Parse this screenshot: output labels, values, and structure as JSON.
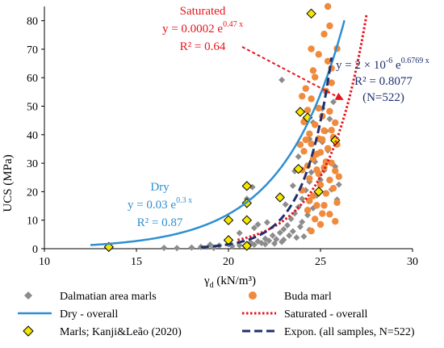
{
  "chart_data": {
    "type": "scatter",
    "xlabel": "γd (kN/m³)",
    "ylabel": "UCS (MPa)",
    "xlim": [
      10,
      30
    ],
    "ylim": [
      0,
      85
    ],
    "xticks": [
      10,
      15,
      20,
      25,
      30
    ],
    "yticks": [
      0,
      10,
      20,
      30,
      40,
      50,
      60,
      70,
      80
    ],
    "grid": false,
    "legend": "bottom",
    "series": [
      {
        "name": "Dalmatian area marls",
        "kind": "scatter",
        "marker": "diamond",
        "color": "#8c8c8c",
        "points": [
          [
            18.5,
            0.6
          ],
          [
            19.0,
            1.4
          ],
          [
            19.5,
            1.1
          ],
          [
            20.0,
            1.6
          ],
          [
            20.2,
            0.9
          ],
          [
            20.6,
            1.2
          ],
          [
            21.0,
            1.5
          ],
          [
            21.2,
            2.2
          ],
          [
            21.4,
            1.4
          ],
          [
            21.6,
            2.6
          ],
          [
            21.8,
            2.0
          ],
          [
            22.0,
            3.5
          ],
          [
            22.0,
            1.6
          ],
          [
            22.2,
            2.8
          ],
          [
            22.4,
            4.6
          ],
          [
            22.5,
            1.8
          ],
          [
            22.6,
            3.3
          ],
          [
            22.8,
            5.6
          ],
          [
            22.9,
            2.4
          ],
          [
            23.0,
            6.8
          ],
          [
            23.0,
            3.1
          ],
          [
            23.2,
            8.2
          ],
          [
            23.3,
            4.6
          ],
          [
            23.4,
            10.5
          ],
          [
            23.5,
            6.1
          ],
          [
            23.6,
            12.4
          ],
          [
            23.7,
            3.9
          ],
          [
            23.8,
            14.6
          ],
          [
            23.9,
            7.7
          ],
          [
            24.0,
            17.5
          ],
          [
            24.0,
            9.4
          ],
          [
            24.1,
            4.3
          ],
          [
            24.2,
            20.5
          ],
          [
            24.3,
            11.8
          ],
          [
            24.4,
            23.5
          ],
          [
            24.4,
            6.6
          ],
          [
            24.5,
            26.8
          ],
          [
            24.6,
            14.2
          ],
          [
            24.7,
            30.5
          ],
          [
            24.8,
            18.7
          ],
          [
            24.9,
            33.5
          ],
          [
            25.0,
            24.2
          ],
          [
            25.1,
            37.4
          ],
          [
            25.2,
            27.5
          ],
          [
            25.3,
            41.3
          ],
          [
            25.4,
            34.5
          ],
          [
            25.5,
            45.5
          ],
          [
            25.6,
            20.8
          ],
          [
            25.7,
            51.5
          ],
          [
            25.8,
            28.8
          ],
          [
            25.9,
            17.2
          ],
          [
            26.0,
            22.5
          ],
          [
            20.6,
            5.5
          ],
          [
            21.4,
            7.3
          ],
          [
            21.0,
            17.5
          ],
          [
            21.3,
            21.6
          ],
          [
            21.6,
            8.5
          ],
          [
            22.1,
            9.2
          ],
          [
            22.9,
            59.2
          ],
          [
            23.1,
            15.5
          ],
          [
            23.6,
            27.2
          ],
          [
            23.8,
            32.3
          ],
          [
            19.2,
            0.3
          ],
          [
            18.0,
            0.4
          ],
          [
            17.2,
            0.2
          ],
          [
            16.5,
            0.3
          ],
          [
            24.4,
            38.5
          ],
          [
            25.1,
            49.2
          ],
          [
            23.5,
            22.1
          ],
          [
            24.6,
            44.3
          ]
        ]
      },
      {
        "name": "Buda marl",
        "kind": "scatter",
        "marker": "circle",
        "color": "#f08a3c",
        "points": [
          [
            24.0,
            20.5
          ],
          [
            24.1,
            34.2
          ],
          [
            24.2,
            45.5
          ],
          [
            24.2,
            56.2
          ],
          [
            24.3,
            29.1
          ],
          [
            24.3,
            13.5
          ],
          [
            24.4,
            40.3
          ],
          [
            24.4,
            24.6
          ],
          [
            24.5,
            52.6
          ],
          [
            24.5,
            36.8
          ],
          [
            24.6,
            18.5
          ],
          [
            24.6,
            31.5
          ],
          [
            24.7,
            60.2
          ],
          [
            24.7,
            43.5
          ],
          [
            24.8,
            27.7
          ],
          [
            24.8,
            15.2
          ],
          [
            24.9,
            38.6
          ],
          [
            24.9,
            49.3
          ],
          [
            25.0,
            22.4
          ],
          [
            25.0,
            33.8
          ],
          [
            25.1,
            46.5
          ],
          [
            25.1,
            12.3
          ],
          [
            25.2,
            28.5
          ],
          [
            25.2,
            41.4
          ],
          [
            25.3,
            55.3
          ],
          [
            25.3,
            19.4
          ],
          [
            25.4,
            35.2
          ],
          [
            25.4,
            65.8
          ],
          [
            25.5,
            24.1
          ],
          [
            25.5,
            48.2
          ],
          [
            25.6,
            30.1
          ],
          [
            25.6,
            58.2
          ],
          [
            25.7,
            39.1
          ],
          [
            25.7,
            21.2
          ],
          [
            25.8,
            44.2
          ],
          [
            25.8,
            27.3
          ],
          [
            25.9,
            36.6
          ],
          [
            25.9,
            16.2
          ],
          [
            26.0,
            25.3
          ],
          [
            24.0,
            53.5
          ],
          [
            24.5,
            70.1
          ],
          [
            24.9,
            68.2
          ],
          [
            25.2,
            75.3
          ],
          [
            25.5,
            78.2
          ],
          [
            25.4,
            85.0
          ],
          [
            25.9,
            70.2
          ],
          [
            25.6,
            63.3
          ],
          [
            24.6,
            62.5
          ],
          [
            24.3,
            48.6
          ],
          [
            24.8,
            33.2
          ],
          [
            25.3,
            30.5
          ],
          [
            25.1,
            38.3
          ],
          [
            24.2,
            38.2
          ],
          [
            24.0,
            27.6
          ],
          [
            23.9,
            36.5
          ],
          [
            24.4,
            16.8
          ],
          [
            24.7,
            10.4
          ],
          [
            25.0,
            8.5
          ],
          [
            25.5,
            12.1
          ],
          [
            25.8,
            9.6
          ],
          [
            24.5,
            6.2
          ],
          [
            24.1,
            44.5
          ],
          [
            24.9,
            26.3
          ],
          [
            25.2,
            15.2
          ],
          [
            25.6,
            41.6
          ]
        ]
      },
      {
        "name": "Marls; Kanji&Leão (2020)",
        "kind": "scatter",
        "marker": "diamond",
        "color": "#f5e600",
        "points": [
          [
            13.5,
            0.6
          ],
          [
            20.0,
            3.0
          ],
          [
            20.0,
            10.0
          ],
          [
            21.0,
            1.0
          ],
          [
            21.0,
            10.0
          ],
          [
            21.0,
            16.0
          ],
          [
            21.0,
            22.0
          ],
          [
            22.8,
            18.0
          ],
          [
            23.8,
            28.0
          ],
          [
            23.9,
            48.0
          ],
          [
            24.3,
            46.0
          ],
          [
            24.5,
            82.5
          ],
          [
            24.9,
            20.0
          ],
          [
            25.8,
            38.0
          ]
        ]
      },
      {
        "name": "Dry - overall",
        "kind": "line",
        "style": "solid",
        "color": "#2e8fd1",
        "equation": "y = 0.03 e^(0.3 x)",
        "x_range": [
          12.5,
          26.3
        ]
      },
      {
        "name": "Saturated - overall",
        "kind": "line",
        "style": "dotted",
        "color": "#e8141c",
        "equation": "y = 0.0002 e^(0.47 x)",
        "x_range": [
          20.5,
          27.5
        ]
      },
      {
        "name": "Expon. (all  samples, N=522)",
        "kind": "line",
        "style": "dashed",
        "color": "#1f2f6e",
        "equation": "y = 2e-6 e^(0.6769 x)",
        "x_range": [
          18.5,
          25.6
        ]
      }
    ],
    "annotations": {
      "saturated": {
        "title": "Saturated",
        "eq_pre": "y = 0.0002 e",
        "eq_exp": "0.47 x",
        "r2": "R² = 0.64"
      },
      "all": {
        "eq_pre": "y = 2 × 10",
        "eq_mid_exp": "-6",
        "eq_mid": " e",
        "eq_exp": "0.6769 x",
        "r2": "R² = 0.8077",
        "n": "(N=522)"
      },
      "dry": {
        "title": "Dry",
        "eq_pre": "y = 0.03 e",
        "eq_exp": "0.3 x",
        "r2": "R² = 0.87"
      }
    }
  },
  "colors": {
    "dry": "#2e8fd1",
    "saturated": "#e8141c",
    "all": "#1f2f6e",
    "dalmatian": "#8c8c8c",
    "buda": "#f08a3c",
    "kanji": "#f5e600"
  }
}
